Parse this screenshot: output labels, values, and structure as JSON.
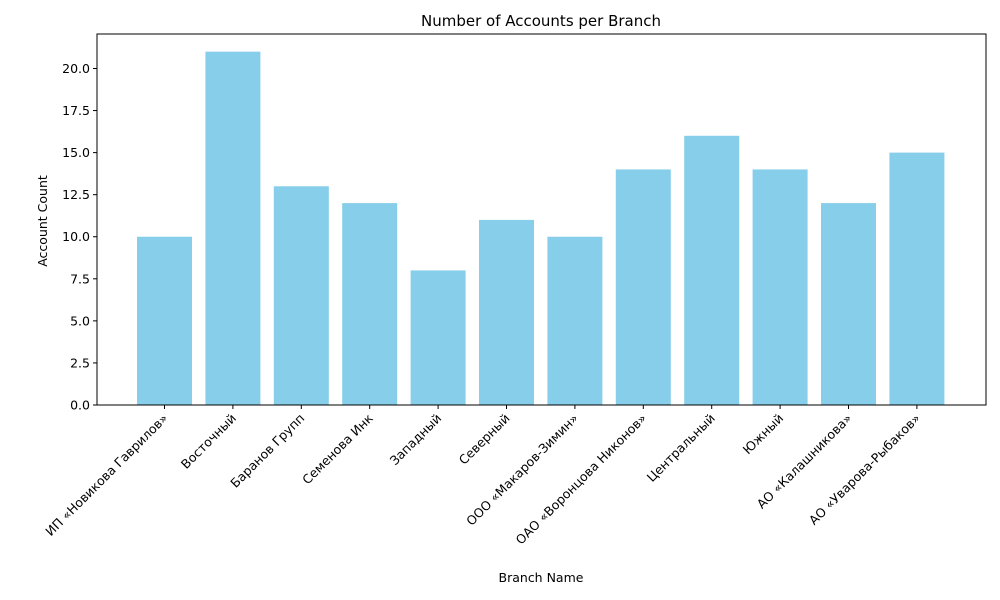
{
  "chart_data": {
    "type": "bar",
    "title": "Number of Accounts per Branch",
    "xlabel": "Branch Name",
    "ylabel": "Account Count",
    "categories": [
      "ИП «Новикова Гаврилов»",
      "Восточный",
      "Баранов Групп",
      "Семенова Инк",
      "Западный",
      "Северный",
      "ООО «Макаров-Зимин»",
      "ОАО «Воронцова Никонов»",
      "Центральный",
      "Южный",
      "АО «Калашникова»",
      "АО «Уварова-Рыбаков»"
    ],
    "values": [
      10,
      21,
      13,
      12,
      8,
      11,
      10,
      14,
      16,
      14,
      12,
      15
    ],
    "ylim": [
      0,
      22.05
    ],
    "yticks": [
      "0.0",
      "2.5",
      "5.0",
      "7.5",
      "10.0",
      "12.5",
      "15.0",
      "17.5",
      "20.0"
    ],
    "bar_color": "#87CEEB",
    "grid": false,
    "legend": "none"
  }
}
